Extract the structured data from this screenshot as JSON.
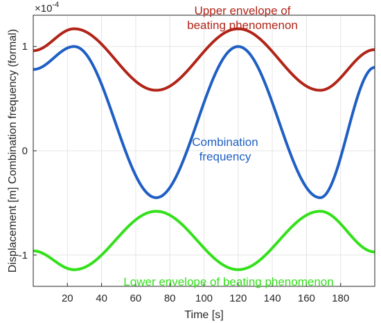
{
  "chart_data": {
    "type": "line",
    "title": "",
    "xlabel": "Time [s]",
    "ylabel": "Displacement [m] Combination frequency (formal)",
    "xlim": [
      0,
      200
    ],
    "ylim": [
      -1.3,
      1.3
    ],
    "y_scale_exponent_label": "×10",
    "y_scale_exponent_power": "-4",
    "grid": true,
    "x_ticks": [
      20,
      40,
      60,
      80,
      100,
      120,
      140,
      160,
      180
    ],
    "y_ticks": [
      -1,
      0,
      1
    ],
    "x_tick_labels": [
      "20",
      "40",
      "60",
      "80",
      "100",
      "120",
      "140",
      "160",
      "180"
    ],
    "y_tick_labels": [
      "-1",
      "0",
      "1"
    ],
    "series": [
      {
        "color": "#b22418",
        "x": [
          0,
          24,
          72,
          120,
          168,
          200
        ],
        "y": [
          0.96,
          1.17,
          0.58,
          1.17,
          0.58,
          0.97
        ]
      },
      {
        "color": "#1f5fc4",
        "x": [
          0,
          24,
          72,
          120,
          168,
          200
        ],
        "y": [
          0.78,
          1.0,
          -0.45,
          1.0,
          -0.45,
          0.8
        ]
      },
      {
        "color": "#33e01a",
        "x": [
          0,
          24,
          72,
          120,
          168,
          200
        ],
        "y": [
          -0.96,
          -1.14,
          -0.58,
          -1.14,
          -0.58,
          -0.97
        ]
      }
    ],
    "annotations": [
      {
        "lines": [
          "Upper envelope of",
          "beating phenomenon"
        ],
        "color": "#b22418"
      },
      {
        "lines": [
          "Combination",
          "frequency"
        ],
        "color": "#1f5fc4"
      },
      {
        "lines": [
          "Lower envelope of beating phenomenon"
        ],
        "color": "#33e01a"
      }
    ]
  }
}
